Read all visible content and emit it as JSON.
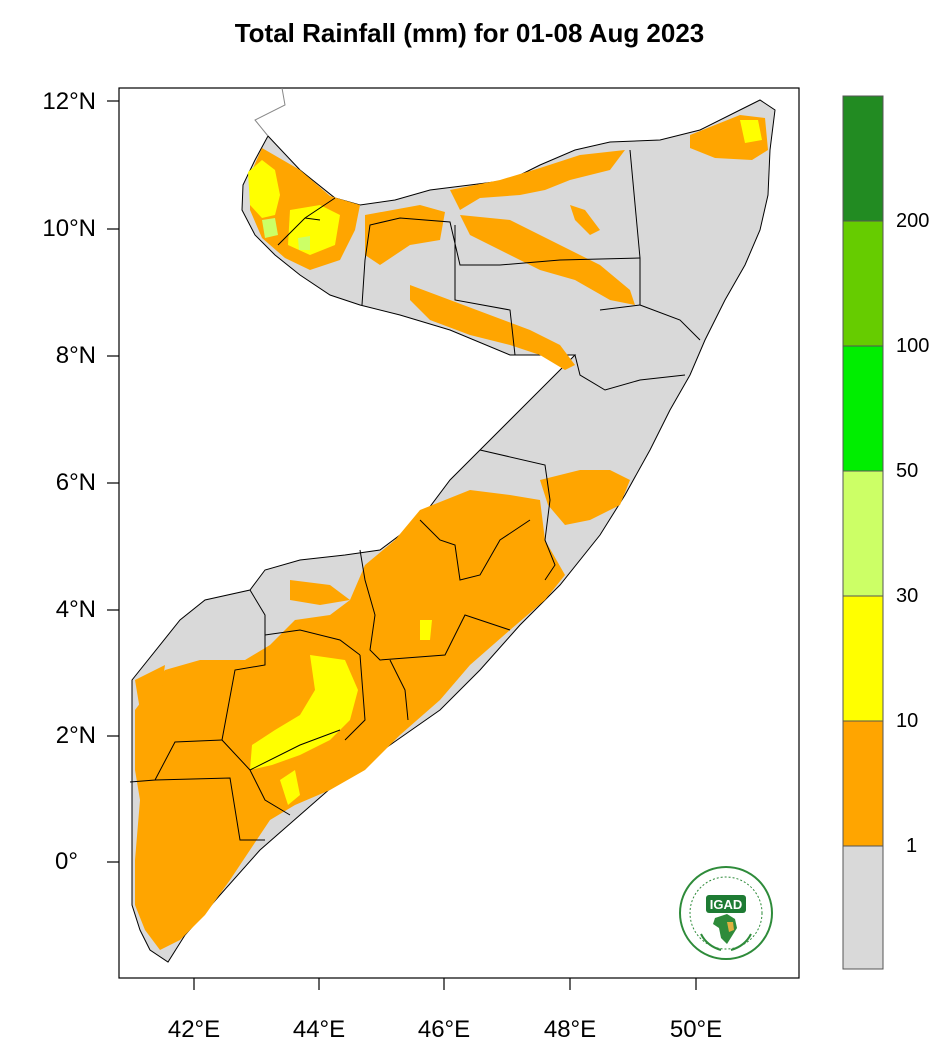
{
  "title": "Total Rainfall (mm) for 01-08 Aug 2023",
  "axes": {
    "lat_ticks": [
      {
        "label": "12°N",
        "value": 12
      },
      {
        "label": "10°N",
        "value": 10
      },
      {
        "label": "8°N",
        "value": 8
      },
      {
        "label": "6°N",
        "value": 6
      },
      {
        "label": "4°N",
        "value": 4
      },
      {
        "label": "2°N",
        "value": 2
      },
      {
        "label": "0°",
        "value": 0
      }
    ],
    "lon_ticks": [
      {
        "label": "42°E",
        "value": 42
      },
      {
        "label": "44°E",
        "value": 44
      },
      {
        "label": "46°E",
        "value": 46
      },
      {
        "label": "48°E",
        "value": 48
      },
      {
        "label": "50°E",
        "value": 50
      }
    ]
  },
  "colorbar": {
    "bins": [
      {
        "color": "#d9d9d9",
        "range": "<1"
      },
      {
        "color": "#ffa500",
        "range": "1-10"
      },
      {
        "color": "#ffff00",
        "range": "10-30"
      },
      {
        "color": "#ccff66",
        "range": "30-50"
      },
      {
        "color": "#00ee00",
        "range": "50-100"
      },
      {
        "color": "#66cc00",
        "range": "100-200"
      },
      {
        "color": "#228b22",
        "range": ">200"
      }
    ],
    "labels": [
      "1",
      "10",
      "30",
      "50",
      "100",
      "200"
    ]
  },
  "logo": {
    "text": "IGAD",
    "icon": "igad-logo-icon"
  }
}
